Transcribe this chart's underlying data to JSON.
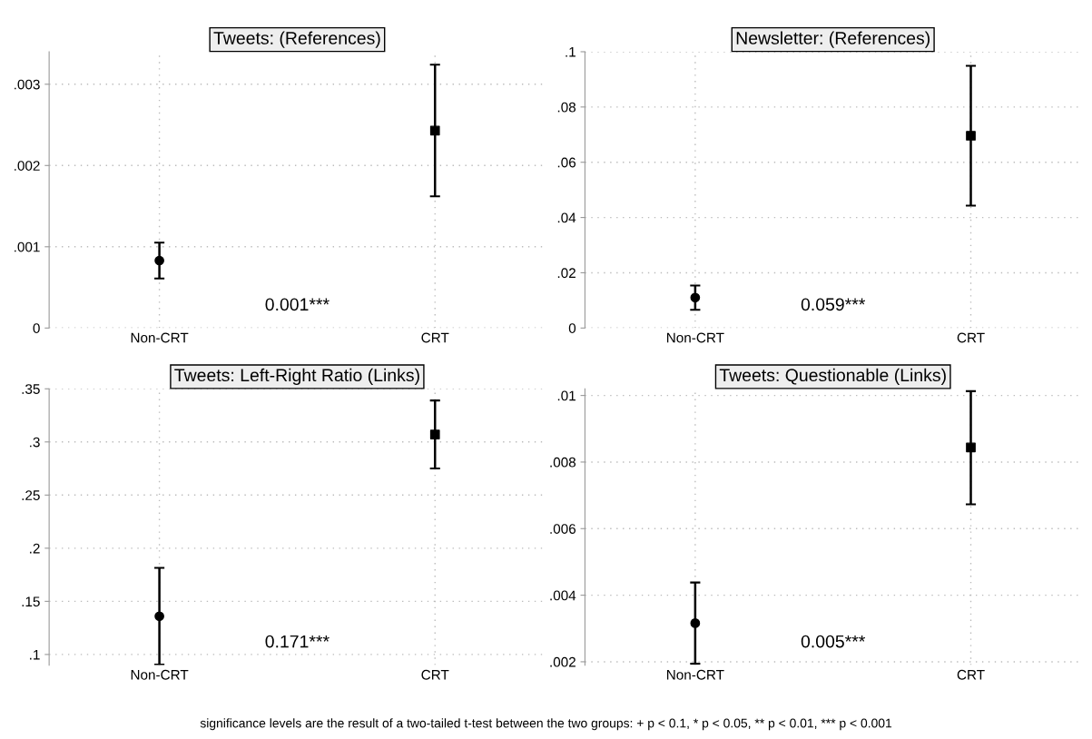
{
  "chart_data": [
    {
      "type": "scatter",
      "title": "Tweets: (References)",
      "categories": [
        "Non-CRT",
        "CRT"
      ],
      "series": [
        {
          "color": "#000000",
          "marker": "circle",
          "values": [
            0.00083,
            null
          ],
          "errors": [
            [
              0.00061,
              0.00105
            ],
            null
          ]
        },
        {
          "color": "#000000",
          "marker": "square",
          "values": [
            null,
            0.00243
          ],
          "errors": [
            null,
            [
              0.00162,
              0.00324
            ]
          ]
        }
      ],
      "ylim": [
        0,
        0.0034
      ],
      "yticks": [
        0,
        {
          "value": 0.001,
          "label": ".001"
        },
        {
          "value": 0.002,
          "label": ".002"
        },
        {
          "value": 0.003,
          "label": ".003"
        }
      ],
      "grid": true,
      "annotations": [
        "0.001***"
      ]
    },
    {
      "type": "scatter",
      "title": "Newsletter: (References)",
      "categories": [
        "Non-CRT",
        "CRT"
      ],
      "series": [
        {
          "color": "#000000",
          "marker": "circle",
          "values": [
            0.011,
            null
          ],
          "errors": [
            [
              0.0066,
              0.0154
            ],
            null
          ]
        },
        {
          "color": "#000000",
          "marker": "square",
          "values": [
            null,
            0.0696
          ],
          "errors": [
            null,
            [
              0.0443,
              0.0949
            ]
          ]
        }
      ],
      "ylim": [
        0,
        0.1
      ],
      "yticks": [
        0,
        {
          "value": 0.02,
          "label": ".02"
        },
        {
          "value": 0.04,
          "label": ".04"
        },
        {
          "value": 0.06,
          "label": ".06"
        },
        {
          "value": 0.08,
          "label": ".08"
        },
        {
          "value": 0.1,
          "label": ".1"
        }
      ],
      "grid": true,
      "annotations": [
        "0.059***"
      ]
    },
    {
      "type": "scatter",
      "title": "Tweets: Left-Right Ratio (Links)",
      "categories": [
        "Non-CRT",
        "CRT"
      ],
      "series": [
        {
          "color": "#000000",
          "marker": "circle",
          "values": [
            0.136,
            null
          ],
          "errors": [
            [
              0.0904,
              0.1815
            ],
            null
          ]
        },
        {
          "color": "#000000",
          "marker": "square",
          "values": [
            null,
            0.307
          ],
          "errors": [
            null,
            [
              0.275,
              0.339
            ]
          ]
        }
      ],
      "ylim": [
        0.09,
        0.35
      ],
      "yticks": [
        {
          "value": 0.1,
          "label": ".1"
        },
        {
          "value": 0.15,
          "label": ".15"
        },
        {
          "value": 0.2,
          "label": ".2"
        },
        {
          "value": 0.25,
          "label": ".25"
        },
        {
          "value": 0.3,
          "label": ".3"
        },
        {
          "value": 0.35,
          "label": ".35"
        }
      ],
      "grid": true,
      "annotations": [
        "0.171***"
      ]
    },
    {
      "type": "scatter",
      "title": "Tweets: Questionable (Links)",
      "categories": [
        "Non-CRT",
        "CRT"
      ],
      "series": [
        {
          "color": "#000000",
          "marker": "circle",
          "values": [
            0.00316,
            null
          ],
          "errors": [
            [
              0.00194,
              0.00438
            ],
            null
          ]
        },
        {
          "color": "#000000",
          "marker": "square",
          "values": [
            null,
            0.00844
          ],
          "errors": [
            null,
            [
              0.00673,
              0.01013
            ]
          ]
        }
      ],
      "ylim": [
        0.0019,
        0.0102
      ],
      "yticks": [
        {
          "value": 0.002,
          "label": ".002"
        },
        {
          "value": 0.004,
          "label": ".004"
        },
        {
          "value": 0.006,
          "label": ".006"
        },
        {
          "value": 0.008,
          "label": ".008"
        },
        {
          "value": 0.01,
          "label": ".01"
        }
      ],
      "grid": true,
      "annotations": [
        "0.005***",
        "significance levels are the result of a two-tailed t-test between the two groups: + p < 0.1, * p < 0.05, ** p < 0.01, *** p < 0.001"
      ]
    }
  ]
}
